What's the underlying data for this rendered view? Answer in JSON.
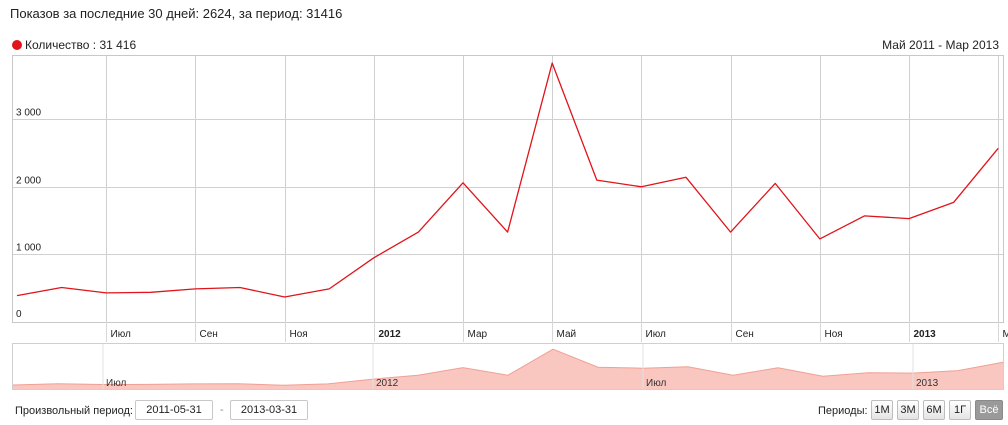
{
  "header": {
    "stats_text": "Показов за последние 30 дней: 2624, за период: 31416"
  },
  "colors": {
    "line": "#e0141a",
    "navigator_fill": "#f9c7bf",
    "navigator_line": "#f0a095",
    "grid": "#d0d0d0"
  },
  "chart_data": {
    "type": "line",
    "legend": {
      "marker_color": "#e0141a",
      "label": "Количество : 31 416",
      "placement": "top-left"
    },
    "range_label": "Май 2011 - Мар 2013",
    "x": [
      "2011-05",
      "2011-06",
      "2011-07",
      "2011-08",
      "2011-09",
      "2011-10",
      "2011-11",
      "2011-12",
      "2012-01",
      "2012-02",
      "2012-03",
      "2012-04",
      "2012-05",
      "2012-06",
      "2012-07",
      "2012-08",
      "2012-09",
      "2012-10",
      "2012-11",
      "2012-12",
      "2013-01",
      "2013-02",
      "2013-03"
    ],
    "series": [
      {
        "name": "Количество",
        "values": [
          390,
          510,
          430,
          440,
          490,
          510,
          370,
          490,
          950,
          1330,
          2060,
          1330,
          3830,
          2100,
          2000,
          2140,
          1330,
          2050,
          1230,
          1570,
          1530,
          1770,
          2570
        ]
      }
    ],
    "ylim": [
      0,
      3950
    ],
    "y_ticks": [
      {
        "value": 0,
        "label": "0"
      },
      {
        "value": 1000,
        "label": "1 000"
      },
      {
        "value": 2000,
        "label": "2 000"
      },
      {
        "value": 3000,
        "label": "3 000"
      }
    ],
    "x_ticks": [
      {
        "label": "Июл",
        "bold": false
      },
      {
        "label": "Сен",
        "bold": false
      },
      {
        "label": "Ноя",
        "bold": false
      },
      {
        "label": "2012",
        "bold": true
      },
      {
        "label": "Мар",
        "bold": false
      },
      {
        "label": "Май",
        "bold": false
      },
      {
        "label": "Июл",
        "bold": false
      },
      {
        "label": "Сен",
        "bold": false
      },
      {
        "label": "Ноя",
        "bold": false
      },
      {
        "label": "2013",
        "bold": true
      },
      {
        "label": "Мар",
        "bold": false
      }
    ],
    "navigator_labels": [
      "Июл",
      "2012",
      "Июл",
      "2013"
    ],
    "grid": true
  },
  "controls": {
    "custom_period_label": "Произвольный период:",
    "date_from": "2011-05-31",
    "date_to": "2013-03-31",
    "date_separator": "-",
    "periods_label": "Периоды:",
    "periods": [
      "1М",
      "3М",
      "6М",
      "1Г",
      "Всё"
    ],
    "active_period": "Всё"
  }
}
